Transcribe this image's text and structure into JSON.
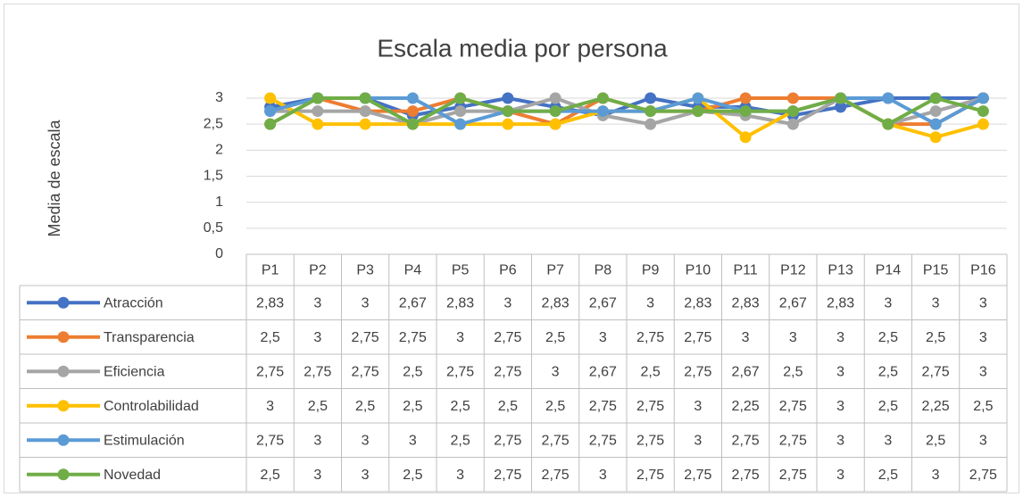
{
  "chart_data": {
    "type": "line",
    "title": "Escala media por persona",
    "y_label": "Media de escala",
    "categories": [
      "P1",
      "P2",
      "P3",
      "P4",
      "P5",
      "P6",
      "P7",
      "P8",
      "P9",
      "P10",
      "P11",
      "P12",
      "P13",
      "P14",
      "P15",
      "P16"
    ],
    "ylim": [
      0,
      3
    ],
    "yticks": [
      0,
      {
        "value": 0.5,
        "label": "0,5"
      },
      1,
      {
        "value": 1.5,
        "label": "1,5"
      },
      2,
      {
        "value": 2.5,
        "label": "2,5"
      },
      3
    ],
    "grid": true,
    "series": [
      {
        "name": "Atracción",
        "color": "#4472c4",
        "values": [
          2.83,
          3,
          3,
          2.67,
          2.83,
          3,
          2.83,
          2.67,
          3,
          2.83,
          2.83,
          2.67,
          2.83,
          3,
          3,
          3
        ],
        "value_labels": [
          "2,83",
          "3",
          "3",
          "2,67",
          "2,83",
          "3",
          "2,83",
          "2,67",
          "3",
          "2,83",
          "2,83",
          "2,67",
          "2,83",
          "3",
          "3",
          "3"
        ]
      },
      {
        "name": "Transparencia",
        "color": "#ed7d31",
        "values": [
          2.5,
          3,
          2.75,
          2.75,
          3,
          2.75,
          2.5,
          3,
          2.75,
          2.75,
          3,
          3,
          3,
          2.5,
          2.5,
          3
        ],
        "value_labels": [
          "2,5",
          "3",
          "2,75",
          "2,75",
          "3",
          "2,75",
          "2,5",
          "3",
          "2,75",
          "2,75",
          "3",
          "3",
          "3",
          "2,5",
          "2,5",
          "3"
        ]
      },
      {
        "name": "Eficiencia",
        "color": "#a5a5a5",
        "values": [
          2.75,
          2.75,
          2.75,
          2.5,
          2.75,
          2.75,
          3,
          2.67,
          2.5,
          2.75,
          2.67,
          2.5,
          3,
          2.5,
          2.75,
          3
        ],
        "value_labels": [
          "2,75",
          "2,75",
          "2,75",
          "2,5",
          "2,75",
          "2,75",
          "3",
          "2,67",
          "2,5",
          "2,75",
          "2,67",
          "2,5",
          "3",
          "2,5",
          "2,75",
          "3"
        ]
      },
      {
        "name": "Controlabilidad",
        "color": "#ffc000",
        "values": [
          3,
          2.5,
          2.5,
          2.5,
          2.5,
          2.5,
          2.5,
          2.75,
          2.75,
          3,
          2.25,
          2.75,
          3,
          2.5,
          2.25,
          2.5
        ],
        "value_labels": [
          "3",
          "2,5",
          "2,5",
          "2,5",
          "2,5",
          "2,5",
          "2,5",
          "2,75",
          "2,75",
          "3",
          "2,25",
          "2,75",
          "3",
          "2,5",
          "2,25",
          "2,5"
        ]
      },
      {
        "name": "Estimulación",
        "color": "#5b9bd5",
        "values": [
          2.75,
          3,
          3,
          3,
          2.5,
          2.75,
          2.75,
          2.75,
          2.75,
          3,
          2.75,
          2.75,
          3,
          3,
          2.5,
          3
        ],
        "value_labels": [
          "2,75",
          "3",
          "3",
          "3",
          "2,5",
          "2,75",
          "2,75",
          "2,75",
          "2,75",
          "3",
          "2,75",
          "2,75",
          "3",
          "3",
          "2,5",
          "3"
        ]
      },
      {
        "name": "Novedad",
        "color": "#70ad47",
        "values": [
          2.5,
          3,
          3,
          2.5,
          3,
          2.75,
          2.75,
          3,
          2.75,
          2.75,
          2.75,
          2.75,
          3,
          2.5,
          3,
          2.75
        ],
        "value_labels": [
          "2,5",
          "3",
          "3",
          "2,5",
          "3",
          "2,75",
          "2,75",
          "3",
          "2,75",
          "2,75",
          "2,75",
          "2,75",
          "3",
          "2,5",
          "3",
          "2,75"
        ]
      }
    ]
  }
}
